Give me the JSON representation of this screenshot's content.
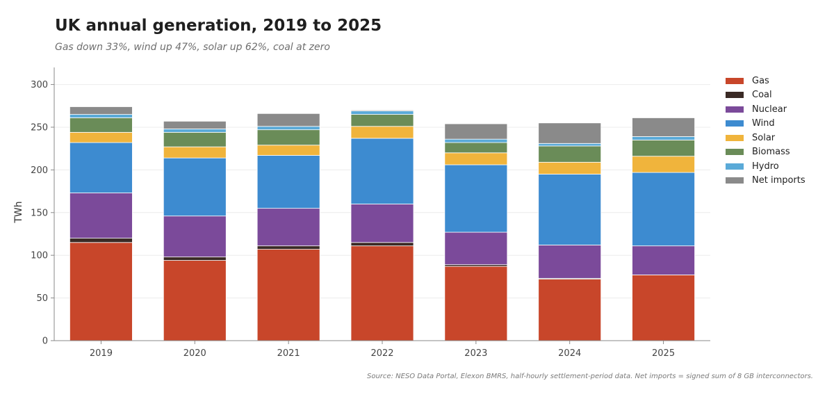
{
  "title": "UK annual generation, 2019 to 2025",
  "subtitle": "Gas down 33%, wind up 47%, solar up 62%, coal at zero",
  "source": "Source: NESO Data Portal, Elexon BMRS, half-hourly settlement-period data. Net imports = signed sum of 8 GB interconnectors.",
  "chart_data": {
    "type": "bar",
    "stacked": true,
    "categories": [
      "2019",
      "2020",
      "2021",
      "2022",
      "2023",
      "2024",
      "2025"
    ],
    "ylabel": "TWh",
    "xlabel": "",
    "ylim": [
      0,
      320
    ],
    "yticks": [
      0,
      50,
      100,
      150,
      200,
      250,
      300
    ],
    "grid": "horizontal",
    "legend_position": "right",
    "series": [
      {
        "name": "Gas",
        "color": "#c8462a",
        "values": [
          115,
          94,
          107,
          111,
          87,
          72,
          77
        ]
      },
      {
        "name": "Coal",
        "color": "#3a2a25",
        "values": [
          5,
          4,
          4,
          4,
          2,
          1,
          0
        ]
      },
      {
        "name": "Nuclear",
        "color": "#7b4a9a",
        "values": [
          53,
          48,
          44,
          45,
          38,
          39,
          34
        ]
      },
      {
        "name": "Wind",
        "color": "#3d8bd0",
        "values": [
          59,
          68,
          62,
          77,
          79,
          83,
          86
        ]
      },
      {
        "name": "Solar",
        "color": "#f0b43c",
        "values": [
          12,
          13,
          12,
          14,
          14,
          14,
          19
        ]
      },
      {
        "name": "Biomass",
        "color": "#6a8c58",
        "values": [
          17,
          17,
          18,
          14,
          12,
          19,
          19
        ]
      },
      {
        "name": "Hydro",
        "color": "#5aaad8",
        "values": [
          4,
          4,
          4,
          4,
          4,
          3,
          4
        ]
      },
      {
        "name": "Net imports",
        "color": "#8a8a8a",
        "values": [
          9,
          9,
          15,
          1,
          18,
          24,
          22
        ]
      }
    ]
  }
}
